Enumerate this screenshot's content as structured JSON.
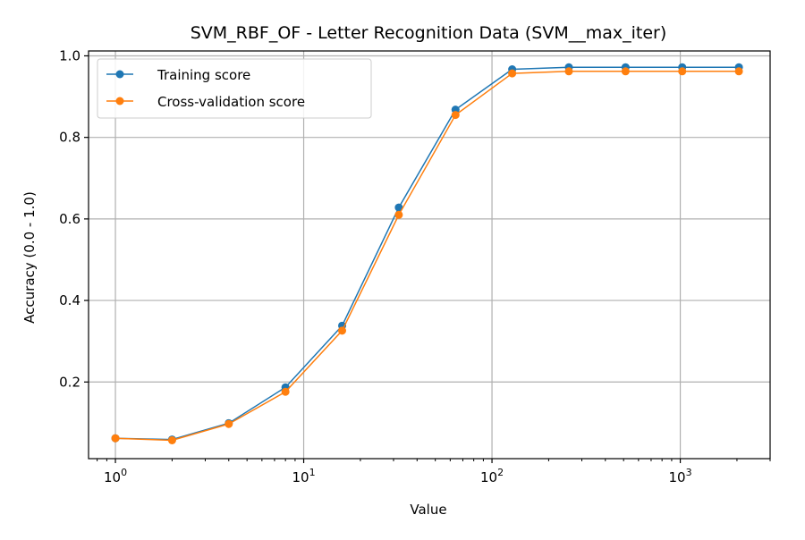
{
  "chart_data": {
    "type": "line",
    "title": "SVM_RBF_OF - Letter Recognition Data (SVM__max_iter)",
    "xlabel": "Value",
    "ylabel": "Accuracy (0.0 - 1.0)",
    "xscale": "log",
    "xlim": [
      0.72,
      3000
    ],
    "ylim": [
      0.012,
      1.012
    ],
    "grid": true,
    "legend_position": "top-left",
    "x": [
      1,
      2,
      4,
      8,
      16,
      32,
      64,
      128,
      256,
      512,
      1024,
      2048
    ],
    "x_major_ticks": [
      {
        "value": 1,
        "base": "10",
        "exp": "0"
      },
      {
        "value": 10,
        "base": "10",
        "exp": "1"
      },
      {
        "value": 100,
        "base": "10",
        "exp": "2"
      },
      {
        "value": 1000,
        "base": "10",
        "exp": "3"
      }
    ],
    "y_ticks": [
      {
        "value": 0.2,
        "label": "0.2"
      },
      {
        "value": 0.4,
        "label": "0.4"
      },
      {
        "value": 0.6,
        "label": "0.6"
      },
      {
        "value": 0.8,
        "label": "0.8"
      },
      {
        "value": 1.0,
        "label": "1.0"
      }
    ],
    "series": [
      {
        "name": "Training score",
        "color": "#1f77b4",
        "values": [
          0.062,
          0.059,
          0.099,
          0.187,
          0.338,
          0.628,
          0.868,
          0.967,
          0.972,
          0.972,
          0.972,
          0.972
        ]
      },
      {
        "name": "Cross-validation score",
        "color": "#ff7f0e",
        "values": [
          0.062,
          0.057,
          0.097,
          0.176,
          0.326,
          0.61,
          0.855,
          0.957,
          0.962,
          0.962,
          0.962,
          0.962
        ]
      }
    ]
  }
}
